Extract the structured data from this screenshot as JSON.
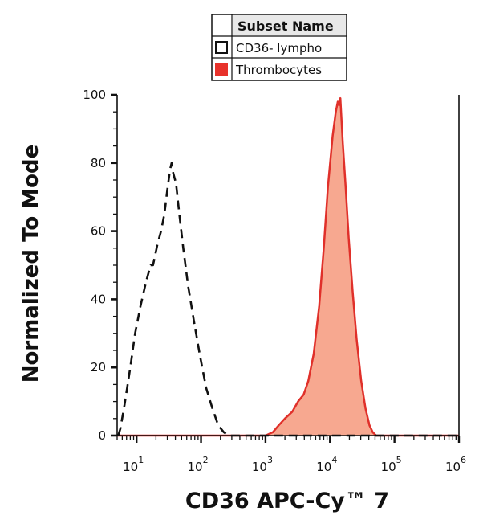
{
  "chart_data": {
    "type": "histogram",
    "xlabel": "CD36 APC-Cy™ 7",
    "ylabel": "Normalized To Mode",
    "xscale": "log",
    "xlim": [
      5,
      1000000
    ],
    "ylim": [
      0,
      100
    ],
    "yticks": [
      0,
      20,
      40,
      60,
      80,
      100
    ],
    "xticks": [
      {
        "value": 10,
        "base": "10",
        "exp": "1"
      },
      {
        "value": 100,
        "base": "10",
        "exp": "2"
      },
      {
        "value": 1000,
        "base": "10",
        "exp": "3"
      },
      {
        "value": 10000,
        "base": "10",
        "exp": "4"
      },
      {
        "value": 100000,
        "base": "10",
        "exp": "5"
      },
      {
        "value": 1000000,
        "base": "10",
        "exp": "6"
      }
    ],
    "legend": {
      "header": "Subset Name",
      "placement": "top-center",
      "entries": [
        {
          "label": "CD36- lympho",
          "style": "dashed-outline"
        },
        {
          "label": "Thrombocytes",
          "style": "filled"
        }
      ]
    },
    "series": [
      {
        "name": "CD36- lympho",
        "style": "dashed",
        "color": "#111111",
        "points": [
          [
            5.2,
            0
          ],
          [
            5.6,
            2
          ],
          [
            6.5,
            9
          ],
          [
            8,
            20
          ],
          [
            9.5,
            30
          ],
          [
            11.5,
            38
          ],
          [
            14,
            45
          ],
          [
            16.5,
            50
          ],
          [
            18,
            50
          ],
          [
            21,
            56
          ],
          [
            24,
            60
          ],
          [
            27,
            65
          ],
          [
            30,
            72
          ],
          [
            33,
            78
          ],
          [
            35,
            80
          ],
          [
            37,
            77
          ],
          [
            41,
            74
          ],
          [
            46,
            65
          ],
          [
            53,
            55
          ],
          [
            63,
            44
          ],
          [
            77,
            34
          ],
          [
            95,
            24
          ],
          [
            120,
            14
          ],
          [
            150,
            8
          ],
          [
            185,
            3
          ],
          [
            225,
            1
          ],
          [
            270,
            0
          ],
          [
            1000000,
            0
          ]
        ]
      },
      {
        "name": "Thrombocytes",
        "style": "filled",
        "color": "#e0302a",
        "fill": "#f7a890",
        "points": [
          [
            5,
            0
          ],
          [
            1000,
            0
          ],
          [
            1300,
            1
          ],
          [
            1600,
            3
          ],
          [
            2000,
            5
          ],
          [
            2600,
            7
          ],
          [
            3200,
            10
          ],
          [
            3900,
            12
          ],
          [
            4600,
            16
          ],
          [
            5600,
            24
          ],
          [
            6800,
            38
          ],
          [
            8000,
            55
          ],
          [
            9300,
            73
          ],
          [
            11000,
            88
          ],
          [
            12300,
            95
          ],
          [
            13200,
            98
          ],
          [
            13800,
            97
          ],
          [
            14500,
            99
          ],
          [
            15800,
            86
          ],
          [
            17500,
            73
          ],
          [
            19500,
            58
          ],
          [
            22500,
            42
          ],
          [
            26000,
            28
          ],
          [
            30500,
            16
          ],
          [
            35500,
            8
          ],
          [
            41000,
            3
          ],
          [
            46000,
            1
          ],
          [
            52000,
            0
          ],
          [
            1000000,
            0
          ]
        ]
      }
    ]
  }
}
